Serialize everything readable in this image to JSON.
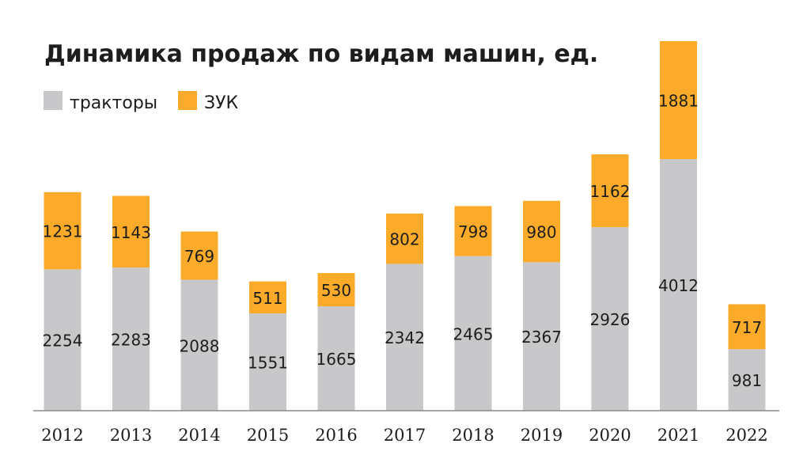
{
  "chart_data": {
    "type": "bar",
    "stacked": true,
    "title": "Динамика продаж по видам машин, ед.",
    "xlabel": "",
    "ylabel": "",
    "ylim": [
      0,
      5893
    ],
    "grid": false,
    "legend_position": "top-left",
    "categories": [
      "2012",
      "2013",
      "2014",
      "2015",
      "2016",
      "2017",
      "2018",
      "2019",
      "2020",
      "2021",
      "2022"
    ],
    "series": [
      {
        "name": "тракторы",
        "color": "#c8c8ca",
        "values": [
          2254,
          2283,
          2088,
          1551,
          1665,
          2342,
          2465,
          2367,
          2926,
          4012,
          981
        ]
      },
      {
        "name": "ЗУК",
        "color": "#fbab29",
        "values": [
          1231,
          1143,
          769,
          511,
          530,
          802,
          798,
          980,
          1162,
          1881,
          717
        ]
      }
    ]
  }
}
